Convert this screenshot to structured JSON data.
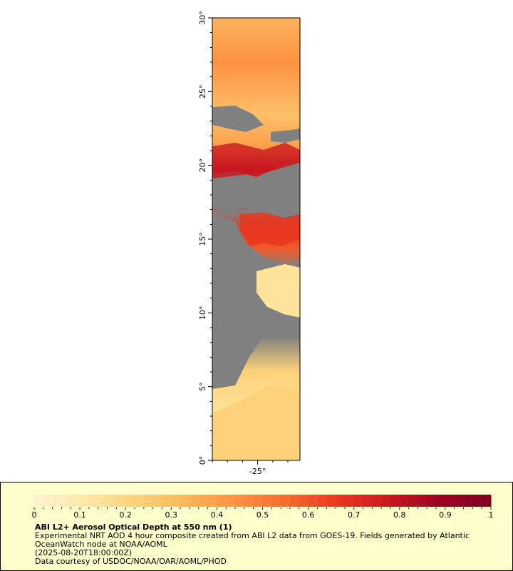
{
  "map": {
    "lat_labels": [
      "0°",
      "5°",
      "10°",
      "15°",
      "20°",
      "25°",
      "30°"
    ],
    "lon_labels": [
      "-25°"
    ],
    "no_data_color": "#808080",
    "aod_colors": [
      "#fff4d2",
      "#ffe7a6",
      "#fed27a",
      "#fdb759",
      "#fd9240",
      "#f86a2c",
      "#e8371f",
      "#c91820",
      "#a00026",
      "#7e0024"
    ]
  },
  "colorbar": {
    "ticks": [
      "0",
      "0.1",
      "0.2",
      "0.3",
      "0.4",
      "0.5",
      "0.6",
      "0.7",
      "0.8",
      "0.9",
      "1"
    ]
  },
  "caption": {
    "title": "ABI L2+ Aerosol Optical Depth at 550 nm (1)",
    "line1": "Experimental NRT AOD 4 hour composite created from ABI L2 data from GOES-19. Fields generated by Atlantic OceanWatch node at NOAA/AOML",
    "line2": "(2025-08-20T18:00:00Z)",
    "line3": "Data courtesy of USDOC/NOAA/OAR/AOML/PHOD"
  }
}
